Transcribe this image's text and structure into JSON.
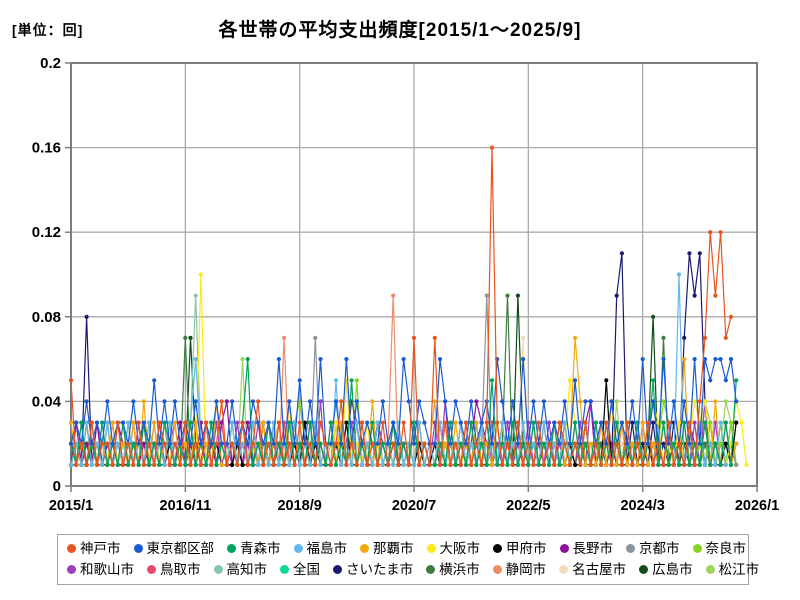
{
  "header": {
    "unit_label": "[単位：回]",
    "title": "各世帯の平均支出頻度[2015/1～2025/9]"
  },
  "chart_data": {
    "type": "line",
    "title": "各世帯の平均支出頻度[2015/1～2025/9]",
    "unit": "回",
    "x_start": "2015/1",
    "x_end": "2025/9",
    "months_total": 129,
    "x_axis_span_months": 132,
    "x_tick_labels": [
      "2015/1",
      "2016/11",
      "2018/9",
      "2020/7",
      "2022/5",
      "2024/3",
      "2026/1"
    ],
    "x_tick_month_index": [
      0,
      22,
      44,
      66,
      88,
      110,
      132
    ],
    "y_tick_labels": [
      "0",
      "0.04",
      "0.08",
      "0.12",
      "0.16",
      "0.2"
    ],
    "y_tick_values": [
      0,
      0.04,
      0.08,
      0.12,
      0.16,
      0.2
    ],
    "ylim": [
      0,
      0.2
    ],
    "grid": true,
    "legend_position": "bottom",
    "style": {
      "grid_color": "#ababab",
      "axis_color": "#7d7d7d",
      "text_color": "#000000",
      "legend_border_color": "#a3a3a3",
      "background": "#ffffff"
    },
    "value_encoding": "each character is a base36 digit; value(回) = parseInt(char,36)/100; index 0 = 2015/1, monthly",
    "series": [
      {
        "id": "kobe",
        "name": "神戸市",
        "color": "#E8541D",
        "values": "512131221312131213212131213124121312412131213121321241213121312131712171312131213g31213121312132121312131213121312131213147c9c78"
      },
      {
        "id": "tokyo",
        "name": "東京都区部",
        "color": "#1A5BD2",
        "values": "232423242332423252424232423242242324323262425242622426242322423264243226424324234264242624242324252442324232426242624242626566564"
      },
      {
        "id": "aomori",
        "name": "青森市",
        "color": "#00A35C",
        "values": "213121312131213121321213121312121361213121312131213121512131213121312112131213121512131213121312131213121312131251312131213121315"
      },
      {
        "id": "fukushima",
        "name": "福島市",
        "color": "#62B8EC",
        "values": "121312131213121312131213621312131213121312131213121512131213121312131213121312131213121312131213121312131213121312131a121312131"
      },
      {
        "id": "naha",
        "name": "那覇市",
        "color": "#F2A90D",
        "values": "312131213121314131213121312141121312131231412131212131213141121312131241213121312131213121312131274121314131213121312161213141312"
      },
      {
        "id": "osaka",
        "name": "大阪市",
        "color": "#FFE81A",
        "values": "1213121312131213121312131a131213121312131213121312131512131212131213121312131213121312131213131253121312131213124312131243421312431"
      },
      {
        "id": "kofu",
        "name": "甲府市",
        "color": "#000000",
        "values": "121312112111213121121211213121112112131221121312111213112112112112121121121121311211211212112131211212151211211212112112131211213"
      },
      {
        "id": "nagano",
        "name": "長野市",
        "color": "#8E109E",
        "values": "131213121321312131211312131213412131213121312131211312431213213121312113121312432131213121131213121341312131211312131213213121312"
      },
      {
        "id": "kyoto",
        "name": "京都市",
        "color": "#8C949C",
        "values": "213121312131213121311213121312131213121312131217121312131213121312131213131213129112131213121312131213121312131213121312134213121"
      },
      {
        "id": "nara",
        "name": "奈良市",
        "color": "#85D41F",
        "values": "121312131213121312131213121312131213121312134213121312151213121312131213121312131213121312131213121312131213121312431213121312131"
      },
      {
        "id": "wakayama",
        "name": "和歌山市",
        "color": "#9C3FBF",
        "values": "131213121312131213123121312131213121312131212131413121312131213121312131412131213121312131213121213141312131213121312131314131213"
      },
      {
        "id": "tottori",
        "name": "鳥取市",
        "color": "#E8476E",
        "values": "212131213112131213121312131213121312131213131213121312131213121312131213131213121312131213121312131213121312131213121312131213121"
      },
      {
        "id": "kochi",
        "name": "高知市",
        "color": "#84C7AC",
        "values": "121312131213121312131213921312131213121312131213121312131213121312131213121312131213121312131213121312131213121312131213121312131"
      },
      {
        "id": "zenkoku",
        "name": "全国",
        "color": "#0CDB8E",
        "values": "121212121212121212121212121212121212121212121212121212121212121212121212121212121212121212121212121212121212121212121212121212121"
      },
      {
        "id": "saitama",
        "name": "さいたま市",
        "color": "#1A1A70",
        "values": "1218121312131213121312131213121312131213121312131213121312131213121312131213121312131213121312131213121319b131213121317b9b412"
      },
      {
        "id": "yokohama",
        "name": "横浜市",
        "color": "#3C7D3F",
        "values": "121121211211212112121171211212112121121121121211211212112121112121121211211211212112912112121211212111212112121121711211212112121"
      },
      {
        "id": "shizuoka",
        "name": "静岡市",
        "color": "#EB8E68",
        "values": "121312131213121312131213121312131213121317131213121312131213129121312113121312131213121312131213121312131213121312131213121312131"
      },
      {
        "id": "nagoya",
        "name": "名古屋市",
        "color": "#EFDCB8",
        "values": "121211212111212112121212112121112121121212121121211121211212121211212111212112121212112721112121121212121121211121211212121211212"
      },
      {
        "id": "hiroshima",
        "name": "広島市",
        "color": "#114D1C",
        "values": "112121121212121121211217211212121211212111212112121212112121112121121212121121211121219212121211212111212112121281112121112121121"
      },
      {
        "id": "matsue",
        "name": "松江市",
        "color": "#9ED45E",
        "values": "121312131213121312131213121312131613121312131213121312131213121312131213121312131213121312131213121312131413121312131213124312431"
      }
    ]
  }
}
